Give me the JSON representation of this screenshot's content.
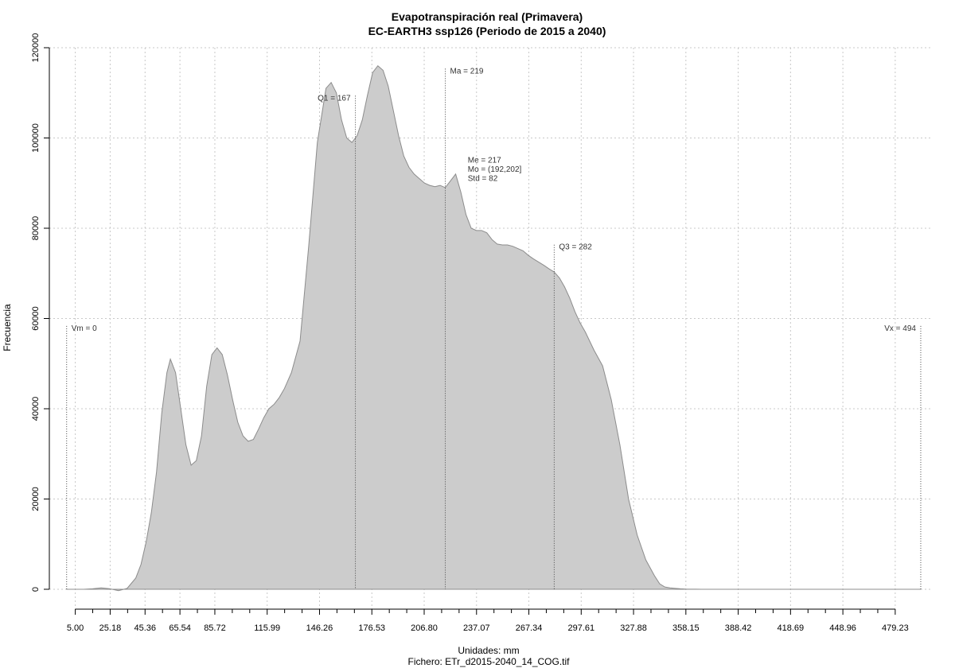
{
  "chart_data": {
    "type": "area",
    "title": "Evapotranspiración real (Primavera)",
    "subtitle": "EC-EARTH3 ssp126 (Periodo de 2015 a 2040)",
    "xlabel": "Unidades: mm",
    "ylabel": "Frecuencia",
    "file_label": "Fichero: ETr_d2015-2040_14_COG.tif",
    "xlim": [
      -10,
      500
    ],
    "ylim": [
      0,
      120000
    ],
    "x_ticks": [
      5.0,
      25.18,
      45.36,
      65.54,
      85.72,
      115.99,
      146.26,
      176.53,
      206.8,
      237.07,
      267.34,
      297.61,
      327.88,
      358.15,
      388.42,
      418.69,
      448.96,
      479.23
    ],
    "x_tick_labels": [
      "5.00",
      "25.18",
      "45.36",
      "65.54",
      "85.72",
      "115.99",
      "146.26",
      "176.53",
      "206.80",
      "237.07",
      "267.34",
      "297.61",
      "327.88",
      "358.15",
      "388.42",
      "418.69",
      "448.96",
      "479.23"
    ],
    "y_ticks": [
      0,
      20000,
      40000,
      60000,
      80000,
      100000,
      120000
    ],
    "y_tick_labels": [
      "0",
      "20000",
      "40000",
      "60000",
      "80000",
      "100000",
      "120000"
    ],
    "grid": true,
    "fill_color": "#cccccc",
    "line_color": "#8c8c8c",
    "series": [
      {
        "x": [
          0,
          10,
          15,
          20,
          25,
          30,
          35,
          40,
          43,
          46,
          49,
          52,
          55,
          58,
          60,
          63,
          66,
          69,
          72,
          75,
          78,
          81,
          84,
          87,
          90,
          93,
          96,
          99,
          102,
          105,
          108,
          111,
          114,
          117,
          120,
          123,
          126,
          130,
          135,
          140,
          145,
          150,
          153,
          156,
          159,
          162,
          165,
          168,
          171,
          174,
          177,
          180,
          183,
          186,
          189,
          192,
          195,
          198,
          201,
          204,
          207,
          210,
          213,
          216,
          219,
          222,
          225,
          228,
          231,
          234,
          237,
          240,
          243,
          246,
          249,
          252,
          255,
          258,
          261,
          264,
          267,
          270,
          273,
          276,
          279,
          282,
          285,
          288,
          291,
          294,
          297,
          300,
          305,
          310,
          315,
          320,
          325,
          330,
          335,
          340,
          343,
          346,
          349,
          352,
          355,
          358,
          361,
          364,
          367,
          370,
          373,
          376,
          379,
          382,
          385,
          388,
          391,
          394,
          397,
          400,
          405,
          410,
          420,
          440,
          460,
          480,
          494
        ],
        "y": [
          0,
          0,
          100,
          300,
          100,
          -300,
          200,
          2500,
          5500,
          10500,
          17000,
          26000,
          39000,
          48000,
          51000,
          48000,
          40000,
          32000,
          27500,
          28500,
          34000,
          45000,
          52000,
          53500,
          52000,
          47500,
          42000,
          37000,
          34000,
          32800,
          33200,
          35500,
          38000,
          40000,
          41000,
          42500,
          44500,
          48000,
          55000,
          76000,
          99000,
          111000,
          112300,
          110000,
          104000,
          100000,
          99000,
          100500,
          104000,
          109500,
          114500,
          116000,
          115000,
          111500,
          106000,
          100500,
          96000,
          93500,
          92000,
          91000,
          90000,
          89500,
          89200,
          89500,
          89000,
          90500,
          92000,
          88000,
          83000,
          80000,
          79500,
          79500,
          79000,
          77500,
          76500,
          76300,
          76300,
          76000,
          75500,
          75000,
          74000,
          73200,
          72500,
          71800,
          71000,
          70300,
          69000,
          67000,
          64500,
          61500,
          59000,
          57000,
          53000,
          49500,
          42000,
          32000,
          20000,
          12000,
          6500,
          3000,
          1200,
          500,
          300,
          200,
          100,
          50,
          30,
          20,
          10,
          5,
          5,
          5,
          5,
          5,
          5,
          5,
          5,
          5,
          0,
          0,
          0,
          0,
          0,
          0,
          0,
          0,
          0
        ]
      }
    ],
    "vlines": [
      {
        "x": 0,
        "label": "Vm = 0",
        "label_y": 58000,
        "label_side": "right"
      },
      {
        "x": 167,
        "label": "Q1 = 167",
        "label_y": 109000,
        "label_side": "left"
      },
      {
        "x": 219,
        "label": "Ma = 219",
        "label_y": 115000,
        "label_side": "right"
      },
      {
        "x": 282,
        "label": "Q3 = 282",
        "label_y": 76000,
        "label_side": "right"
      },
      {
        "x": 494,
        "label": "Vx = 494",
        "label_y": 58000,
        "label_side": "left"
      }
    ],
    "stats_annotation": {
      "x": 232,
      "lines": [
        "Me = 217",
        "Mo = (192,202]",
        "Std = 82"
      ],
      "top_y": 94500
    }
  }
}
